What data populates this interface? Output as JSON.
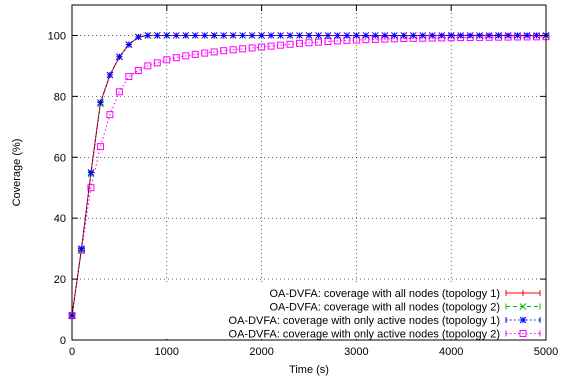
{
  "chart_data": {
    "type": "line",
    "xlabel": "Time (s)",
    "ylabel": "Coverage (%)",
    "xlim": [
      0,
      5000
    ],
    "ylim": [
      0,
      110
    ],
    "xticks": [
      0,
      1000,
      2000,
      3000,
      4000,
      5000
    ],
    "yticks": [
      0,
      20,
      40,
      60,
      80,
      100
    ],
    "grid": true,
    "legend_position": "bottom-right",
    "series": [
      {
        "name": "OA-DVFA: coverage with all nodes  (topology 1)",
        "color": "#ff0000",
        "marker": "plus",
        "dash": "solid",
        "x": [
          0,
          100,
          200,
          300,
          400,
          500,
          600,
          700,
          800,
          900,
          1000,
          1200,
          1500,
          2000,
          2500,
          3000,
          3500,
          4000,
          4500,
          5000
        ],
        "y": [
          8,
          30,
          55,
          78,
          87,
          93,
          97,
          99.5,
          100,
          100,
          100,
          100,
          100,
          100,
          100,
          100,
          100,
          100,
          100,
          100
        ]
      },
      {
        "name": "OA-DVFA: coverage with all nodes (topology 2)",
        "color": "#00bb00",
        "marker": "cross",
        "dash": "dashed",
        "x": [
          0,
          100,
          200,
          300,
          400,
          500,
          600,
          700,
          800,
          900,
          1000,
          1200,
          1500,
          2000,
          2500,
          3000,
          3500,
          4000,
          4500,
          5000
        ],
        "y": [
          8,
          29.5,
          54.5,
          77.5,
          87,
          93,
          97,
          99.5,
          100,
          100,
          100,
          100,
          100,
          100,
          100,
          100,
          100,
          100,
          100,
          100
        ]
      },
      {
        "name": "OA-DVFA: coverage with only active nodes (topology 1)",
        "color": "#0000ff",
        "marker": "star",
        "dash": "dotted",
        "x": [
          0,
          100,
          200,
          300,
          400,
          500,
          600,
          700,
          800,
          900,
          1000,
          1100,
          1200,
          1300,
          1400,
          1500,
          1600,
          1700,
          1800,
          1900,
          2000,
          2100,
          2200,
          2300,
          2400,
          2500,
          2600,
          2700,
          2800,
          2900,
          3000,
          3100,
          3200,
          3300,
          3400,
          3500,
          3600,
          3700,
          3800,
          3900,
          4000,
          4100,
          4200,
          4300,
          4400,
          4500,
          4600,
          4700,
          4800,
          4900,
          5000
        ],
        "y": [
          8,
          30,
          55,
          78,
          87,
          93,
          97,
          99.5,
          100,
          100,
          100,
          100,
          100,
          100,
          100,
          100,
          100,
          100,
          100,
          100,
          100,
          100,
          100,
          100,
          100,
          100,
          100,
          100,
          100,
          100,
          100,
          100,
          100,
          100,
          100,
          100,
          100,
          100,
          100,
          100,
          100,
          100,
          100,
          100,
          100,
          100,
          100,
          100,
          100,
          100,
          100
        ]
      },
      {
        "name": "OA-DVFA: coverage with only active nodes (topology 2)",
        "color": "#ff00ff",
        "marker": "square",
        "dash": "dotted",
        "x": [
          0,
          100,
          200,
          300,
          400,
          500,
          600,
          700,
          800,
          900,
          1000,
          1100,
          1200,
          1300,
          1400,
          1500,
          1600,
          1700,
          1800,
          1900,
          2000,
          2100,
          2200,
          2300,
          2400,
          2500,
          2600,
          2700,
          2800,
          2900,
          3000,
          3100,
          3200,
          3300,
          3400,
          3500,
          3600,
          3700,
          3800,
          3900,
          4000,
          4100,
          4200,
          4300,
          4400,
          4500,
          4600,
          4700,
          4800,
          4900,
          5000
        ],
        "y": [
          8,
          29.5,
          50,
          63.5,
          74,
          81.5,
          86.5,
          88.5,
          90,
          91,
          92,
          92.7,
          93.3,
          93.8,
          94.2,
          94.6,
          95,
          95.3,
          95.6,
          95.9,
          96.2,
          96.5,
          96.8,
          97.1,
          97.4,
          97.6,
          97.8,
          98,
          98.2,
          98.4,
          98.5,
          98.6,
          98.7,
          98.8,
          98.9,
          99,
          99.05,
          99.1,
          99.15,
          99.2,
          99.25,
          99.3,
          99.33,
          99.36,
          99.4,
          99.43,
          99.46,
          99.5,
          99.52,
          99.55,
          99.6
        ]
      }
    ]
  }
}
